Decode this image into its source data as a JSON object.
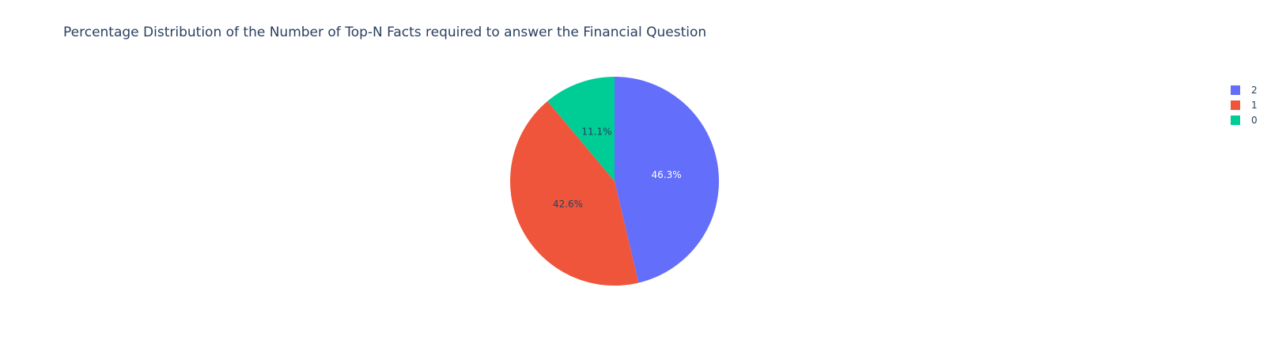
{
  "chart_data": {
    "type": "pie",
    "title": "Percentage Distribution of the Number of Top-N Facts required to answer the Financial Question",
    "labels": [
      "2",
      "1",
      "0"
    ],
    "values": [
      46.3,
      42.6,
      11.1
    ],
    "text": [
      "46.3%",
      "42.6%",
      "11.1%"
    ],
    "colors": [
      "#636efa",
      "#ef553b",
      "#00cc96"
    ],
    "text_colors": [
      "#ffffff",
      "#2a3f5f",
      "#2a3f5f"
    ],
    "direction": "clockwise",
    "start": "top",
    "legend_placement": "top-right"
  },
  "legend": {
    "items": [
      {
        "label": "2",
        "color": "#636efa"
      },
      {
        "label": "1",
        "color": "#ef553b"
      },
      {
        "label": "0",
        "color": "#00cc96"
      }
    ]
  }
}
